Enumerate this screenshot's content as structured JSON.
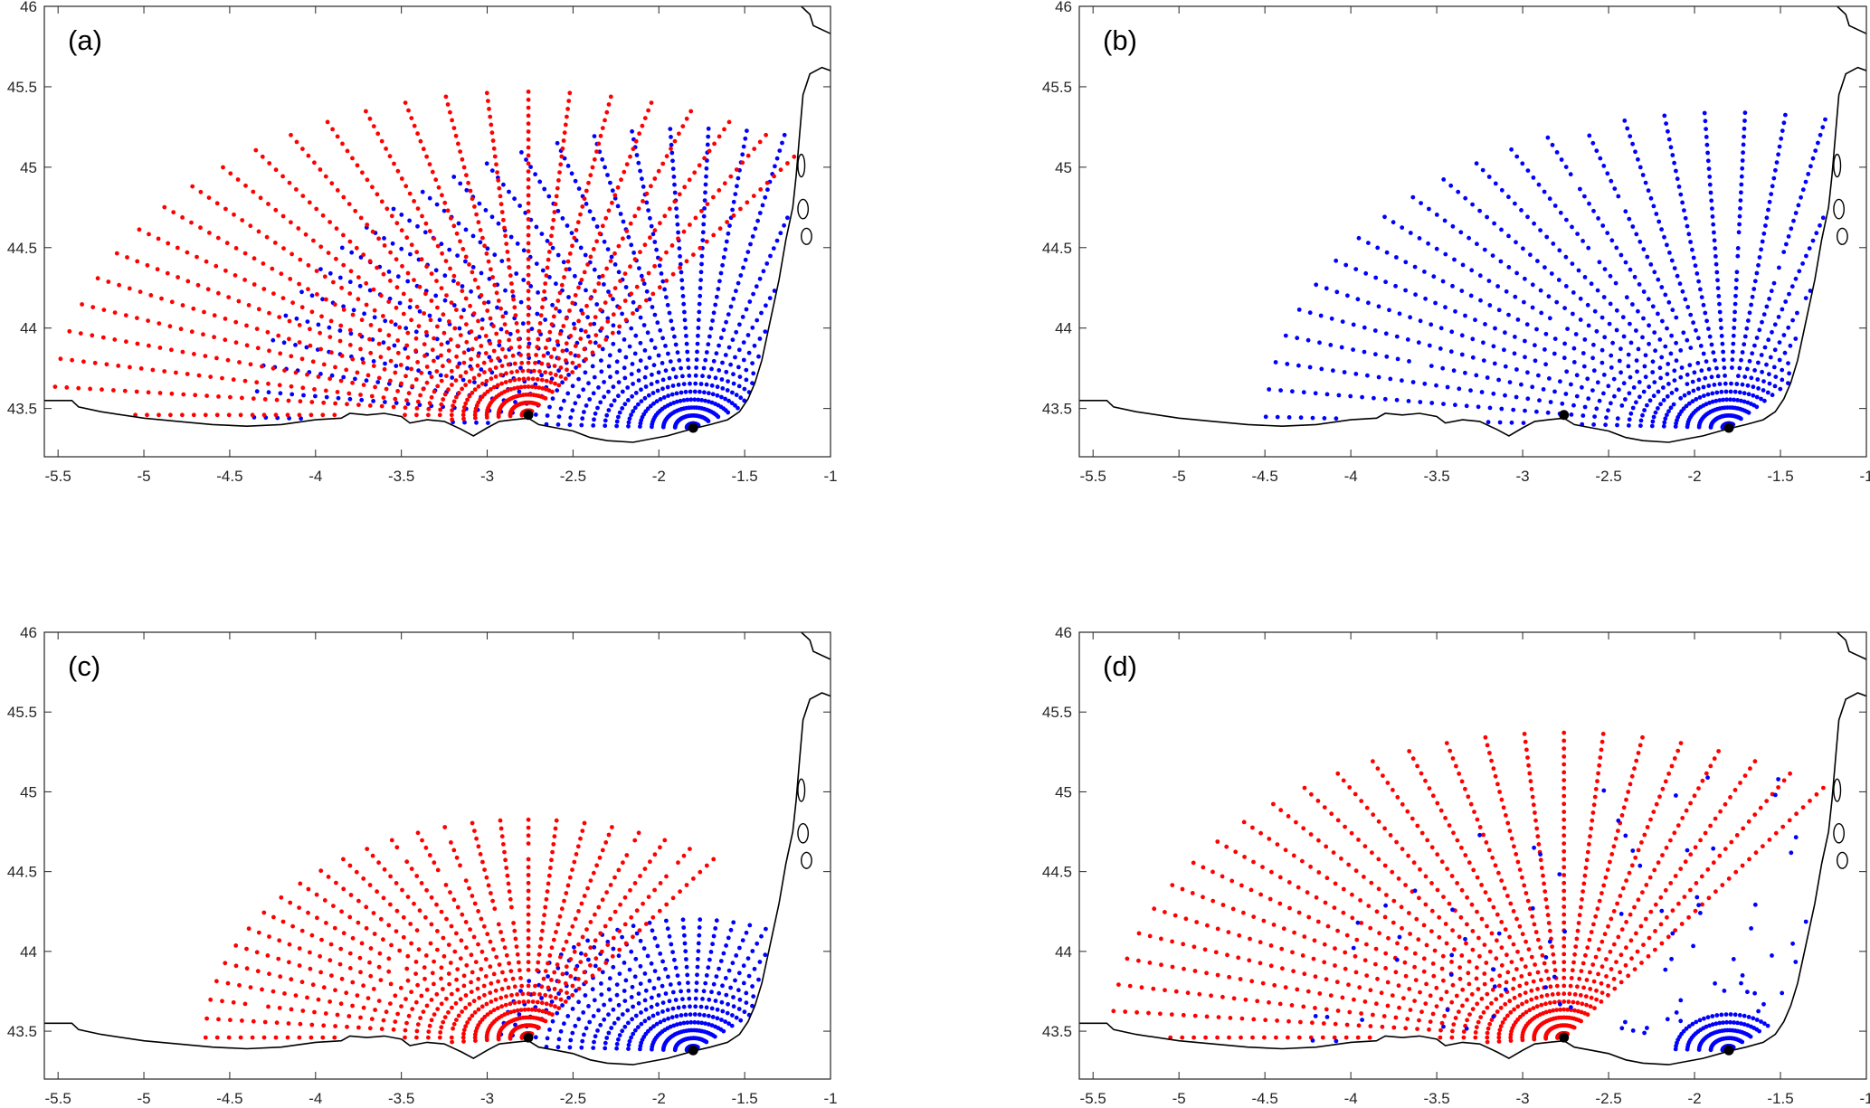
{
  "chart_data": [
    {
      "type": "scatter",
      "panel_label": "(a)",
      "xlim": [
        -5.58,
        -1
      ],
      "ylim": [
        43.2,
        46
      ],
      "xticks": [
        "-5.5",
        "-5",
        "-4.5",
        "-4",
        "-3.5",
        "-3",
        "-2.5",
        "-2",
        "-1.5",
        "-1"
      ],
      "yticks": [
        "43.5",
        "44",
        "44.5",
        "45",
        "45.5",
        "46"
      ],
      "grid": false,
      "series": [
        {
          "color": "#0000ff",
          "site": [
            -1.8,
            43.38
          ],
          "bearing_range_deg": [
            -88,
            60
          ],
          "max_range_km": 210,
          "density": 1.0
        },
        {
          "color": "#ff0000",
          "site": [
            -2.76,
            43.46
          ],
          "bearing_range_deg": [
            -95,
            35
          ],
          "max_range_km": 225,
          "density": 1.0
        }
      ]
    },
    {
      "type": "scatter",
      "panel_label": "(b)",
      "xlim": [
        -5.58,
        -1
      ],
      "ylim": [
        43.2,
        46
      ],
      "xticks": [
        "-5.5",
        "-5",
        "-4.5",
        "-4",
        "-3.5",
        "-3",
        "-2.5",
        "-2",
        "-1.5",
        "-1"
      ],
      "yticks": [
        "43.5",
        "44",
        "44.5",
        "45",
        "45.5",
        "46"
      ],
      "grid": false,
      "series": [
        {
          "color": "#0000ff",
          "site": [
            -1.8,
            43.38
          ],
          "bearing_range_deg": [
            -88,
            45
          ],
          "max_range_km": 220,
          "density": 0.97
        }
      ]
    },
    {
      "type": "scatter",
      "panel_label": "(c)",
      "xlim": [
        -5.58,
        -1
      ],
      "ylim": [
        43.2,
        46
      ],
      "xticks": [
        "-5.5",
        "-5",
        "-4.5",
        "-4",
        "-3.5",
        "-3",
        "-2.5",
        "-2",
        "-1.5",
        "-1"
      ],
      "yticks": [
        "43.5",
        "44",
        "44.5",
        "45",
        "45.5",
        "46"
      ],
      "grid": false,
      "series": [
        {
          "color": "#0000ff",
          "site": [
            -1.8,
            43.38
          ],
          "bearing_range_deg": [
            -88,
            50
          ],
          "max_range_km": 95,
          "density": 1.0
        },
        {
          "color": "#ff0000",
          "site": [
            -2.76,
            43.46
          ],
          "bearing_range_deg": [
            -95,
            35
          ],
          "max_range_km": 155,
          "density": 0.97
        }
      ]
    },
    {
      "type": "scatter",
      "panel_label": "(d)",
      "xlim": [
        -5.58,
        -1
      ],
      "ylim": [
        43.2,
        46
      ],
      "xticks": [
        "-5.5",
        "-5",
        "-4.5",
        "-4",
        "-3.5",
        "-3",
        "-2.5",
        "-2",
        "-1.5",
        "-1"
      ],
      "yticks": [
        "43.5",
        "44",
        "44.5",
        "45",
        "45.5",
        "46"
      ],
      "grid": false,
      "series": [
        {
          "color": "#ff0000",
          "site": [
            -2.76,
            43.46
          ],
          "bearing_range_deg": [
            -95,
            35
          ],
          "max_range_km": 215,
          "density": 1.0
        },
        {
          "color": "#0000ff",
          "site": [
            -1.8,
            43.38
          ],
          "bearing_range_deg": [
            -88,
            50
          ],
          "max_range_km": 200,
          "density": 0.12
        }
      ]
    }
  ],
  "sites": [
    {
      "color": "#000000",
      "lon": -2.76,
      "lat": 43.46
    },
    {
      "color": "#000000",
      "lon": -1.8,
      "lat": 43.38
    }
  ],
  "coastline": [
    [
      -5.6,
      43.55
    ],
    [
      -5.42,
      43.55
    ],
    [
      -5.38,
      43.51
    ],
    [
      -5.25,
      43.48
    ],
    [
      -5.0,
      43.44
    ],
    [
      -4.8,
      43.42
    ],
    [
      -4.6,
      43.4
    ],
    [
      -4.4,
      43.39
    ],
    [
      -4.2,
      43.4
    ],
    [
      -4.0,
      43.43
    ],
    [
      -3.85,
      43.44
    ],
    [
      -3.8,
      43.47
    ],
    [
      -3.7,
      43.46
    ],
    [
      -3.6,
      43.47
    ],
    [
      -3.5,
      43.45
    ],
    [
      -3.45,
      43.41
    ],
    [
      -3.35,
      43.43
    ],
    [
      -3.25,
      43.42
    ],
    [
      -3.15,
      43.37
    ],
    [
      -3.08,
      43.33
    ],
    [
      -3.0,
      43.38
    ],
    [
      -2.93,
      43.42
    ],
    [
      -2.85,
      43.43
    ],
    [
      -2.76,
      43.44
    ],
    [
      -2.7,
      43.4
    ],
    [
      -2.6,
      43.38
    ],
    [
      -2.5,
      43.36
    ],
    [
      -2.4,
      43.32
    ],
    [
      -2.3,
      43.3
    ],
    [
      -2.15,
      43.29
    ],
    [
      -2.05,
      43.31
    ],
    [
      -1.95,
      43.33
    ],
    [
      -1.85,
      43.36
    ],
    [
      -1.78,
      43.38
    ],
    [
      -1.7,
      43.4
    ],
    [
      -1.6,
      43.43
    ],
    [
      -1.53,
      43.48
    ],
    [
      -1.48,
      43.56
    ],
    [
      -1.44,
      43.66
    ],
    [
      -1.4,
      43.8
    ],
    [
      -1.36,
      44.0
    ],
    [
      -1.3,
      44.3
    ],
    [
      -1.26,
      44.55
    ],
    [
      -1.22,
      44.75
    ],
    [
      -1.2,
      44.95
    ],
    [
      -1.18,
      45.2
    ],
    [
      -1.16,
      45.45
    ],
    [
      -1.12,
      45.58
    ],
    [
      -1.05,
      45.62
    ],
    [
      -1.0,
      45.6
    ]
  ],
  "coastline_north": [
    [
      -1.0,
      45.83
    ],
    [
      -1.1,
      45.88
    ],
    [
      -1.12,
      45.95
    ],
    [
      -1.17,
      46.0
    ]
  ]
}
